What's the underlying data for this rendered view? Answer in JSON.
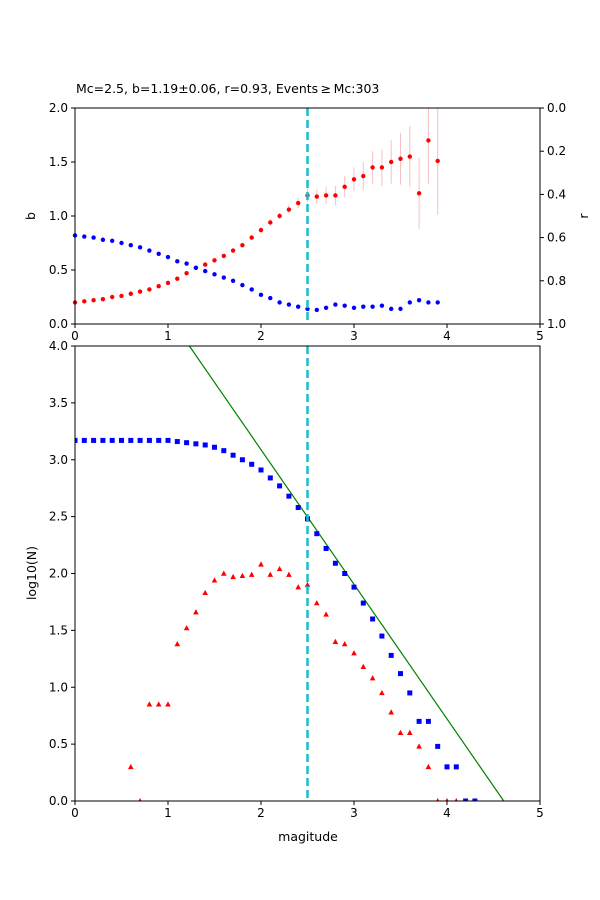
{
  "chart_data": [
    {
      "type": "scatter",
      "title": "Mc=2.5, b=1.19±0.06, r=0.93, Events ≥ Mc:303",
      "ylabel_left": "b",
      "ylabel_right": "r",
      "xlim": [
        0,
        5
      ],
      "ylim_left": [
        0,
        2
      ],
      "ylim_right": [
        1,
        0
      ],
      "right_axis_inverted": true,
      "x_ticks": [
        "0",
        "1",
        "2",
        "3",
        "4",
        "5"
      ],
      "y_left_ticks": [
        "0.0",
        "0.5",
        "1.0",
        "1.5",
        "2.0"
      ],
      "y_right_ticks": [
        "0.0",
        "0.2",
        "0.4",
        "0.6",
        "0.8",
        "1.0"
      ],
      "grid": false,
      "reference_line": {
        "x": 2.5,
        "color": "#17becf",
        "style": "dashed"
      },
      "series": [
        {
          "axis": "left",
          "color": "#ff0000",
          "marker": "circle",
          "x": [
            0.0,
            0.1,
            0.2,
            0.3,
            0.4,
            0.5,
            0.6,
            0.7,
            0.8,
            0.9,
            1.0,
            1.1,
            1.2,
            1.3,
            1.4,
            1.5,
            1.6,
            1.7,
            1.8,
            1.9,
            2.0,
            2.1,
            2.2,
            2.3,
            2.4,
            2.5,
            2.6,
            2.7,
            2.8,
            2.9,
            3.0,
            3.1,
            3.2,
            3.3,
            3.4,
            3.5,
            3.6,
            3.7,
            3.8,
            3.9
          ],
          "y": [
            0.2,
            0.21,
            0.22,
            0.23,
            0.25,
            0.26,
            0.28,
            0.3,
            0.32,
            0.35,
            0.38,
            0.42,
            0.47,
            0.52,
            0.55,
            0.59,
            0.63,
            0.68,
            0.73,
            0.8,
            0.87,
            0.94,
            1.0,
            1.06,
            1.12,
            1.19,
            1.18,
            1.19,
            1.19,
            1.27,
            1.34,
            1.37,
            1.45,
            1.45,
            1.5,
            1.53,
            1.55,
            1.21,
            1.7,
            1.51
          ],
          "err": [
            0.01,
            0.01,
            0.01,
            0.01,
            0.01,
            0.01,
            0.01,
            0.01,
            0.01,
            0.01,
            0.01,
            0.01,
            0.01,
            0.01,
            0.02,
            0.02,
            0.02,
            0.02,
            0.02,
            0.02,
            0.03,
            0.03,
            0.03,
            0.04,
            0.05,
            0.06,
            0.07,
            0.08,
            0.09,
            0.1,
            0.11,
            0.13,
            0.15,
            0.17,
            0.2,
            0.24,
            0.28,
            0.33,
            0.4,
            0.5
          ]
        },
        {
          "axis": "right",
          "color": "#0000ff",
          "marker": "circle",
          "x": [
            0.0,
            0.1,
            0.2,
            0.3,
            0.4,
            0.5,
            0.6,
            0.7,
            0.8,
            0.9,
            1.0,
            1.1,
            1.2,
            1.3,
            1.4,
            1.5,
            1.6,
            1.7,
            1.8,
            1.9,
            2.0,
            2.1,
            2.2,
            2.3,
            2.4,
            2.5,
            2.6,
            2.7,
            2.8,
            2.9,
            3.0,
            3.1,
            3.2,
            3.3,
            3.4,
            3.5,
            3.6,
            3.7,
            3.8,
            3.9
          ],
          "y": [
            0.59,
            0.595,
            0.6,
            0.61,
            0.615,
            0.625,
            0.635,
            0.645,
            0.66,
            0.675,
            0.69,
            0.71,
            0.72,
            0.74,
            0.755,
            0.77,
            0.785,
            0.8,
            0.82,
            0.84,
            0.865,
            0.88,
            0.9,
            0.91,
            0.92,
            0.93,
            0.935,
            0.925,
            0.91,
            0.915,
            0.925,
            0.92,
            0.92,
            0.915,
            0.93,
            0.93,
            0.9,
            0.89,
            0.9,
            0.9
          ]
        }
      ]
    },
    {
      "type": "scatter",
      "xlabel": "magitude",
      "ylabel": "log10(N)",
      "xlim": [
        0,
        5
      ],
      "ylim": [
        0,
        4
      ],
      "x_ticks": [
        "0",
        "1",
        "2",
        "3",
        "4",
        "5"
      ],
      "y_ticks": [
        "0.0",
        "0.5",
        "1.0",
        "1.5",
        "2.0",
        "2.5",
        "3.0",
        "3.5",
        "4.0"
      ],
      "grid": false,
      "reference_line": {
        "x": 2.5,
        "color": "#17becf",
        "style": "dashed"
      },
      "fit_line": {
        "color": "#008000",
        "points": [
          [
            1.23,
            4.0
          ],
          [
            4.61,
            0.0
          ]
        ]
      },
      "series": [
        {
          "color": "#0000ff",
          "marker": "square",
          "x": [
            0.0,
            0.1,
            0.2,
            0.3,
            0.4,
            0.5,
            0.6,
            0.7,
            0.8,
            0.9,
            1.0,
            1.1,
            1.2,
            1.3,
            1.4,
            1.5,
            1.6,
            1.7,
            1.8,
            1.9,
            2.0,
            2.1,
            2.2,
            2.3,
            2.4,
            2.5,
            2.6,
            2.7,
            2.8,
            2.9,
            3.0,
            3.1,
            3.2,
            3.3,
            3.4,
            3.5,
            3.6,
            3.7,
            3.8,
            3.9,
            4.0,
            4.1,
            4.2,
            4.3
          ],
          "y": [
            3.17,
            3.17,
            3.17,
            3.17,
            3.17,
            3.17,
            3.17,
            3.17,
            3.17,
            3.17,
            3.17,
            3.16,
            3.15,
            3.14,
            3.13,
            3.11,
            3.08,
            3.04,
            3.0,
            2.96,
            2.91,
            2.84,
            2.77,
            2.68,
            2.58,
            2.48,
            2.35,
            2.22,
            2.09,
            2.0,
            1.88,
            1.74,
            1.6,
            1.45,
            1.28,
            1.12,
            0.95,
            0.7,
            0.7,
            0.48,
            0.3,
            0.3,
            0.0,
            0.0
          ]
        },
        {
          "color": "#ff0000",
          "marker": "triangle",
          "x": [
            0.6,
            0.7,
            0.8,
            0.9,
            1.0,
            1.1,
            1.2,
            1.3,
            1.4,
            1.5,
            1.6,
            1.7,
            1.8,
            1.9,
            2.0,
            2.1,
            2.2,
            2.3,
            2.4,
            2.5,
            2.6,
            2.7,
            2.8,
            2.9,
            3.0,
            3.1,
            3.2,
            3.3,
            3.4,
            3.5,
            3.6,
            3.7,
            3.8,
            3.9,
            4.0,
            4.1
          ],
          "y": [
            0.3,
            0.0,
            0.85,
            0.85,
            0.85,
            1.38,
            1.52,
            1.66,
            1.83,
            1.94,
            2.0,
            1.97,
            1.98,
            1.99,
            2.08,
            1.99,
            2.04,
            1.99,
            1.88,
            1.9,
            1.74,
            1.64,
            1.4,
            1.38,
            1.3,
            1.18,
            1.08,
            0.95,
            0.78,
            0.6,
            0.6,
            0.48,
            0.3,
            0.0,
            0.0,
            0.0
          ]
        }
      ]
    }
  ]
}
